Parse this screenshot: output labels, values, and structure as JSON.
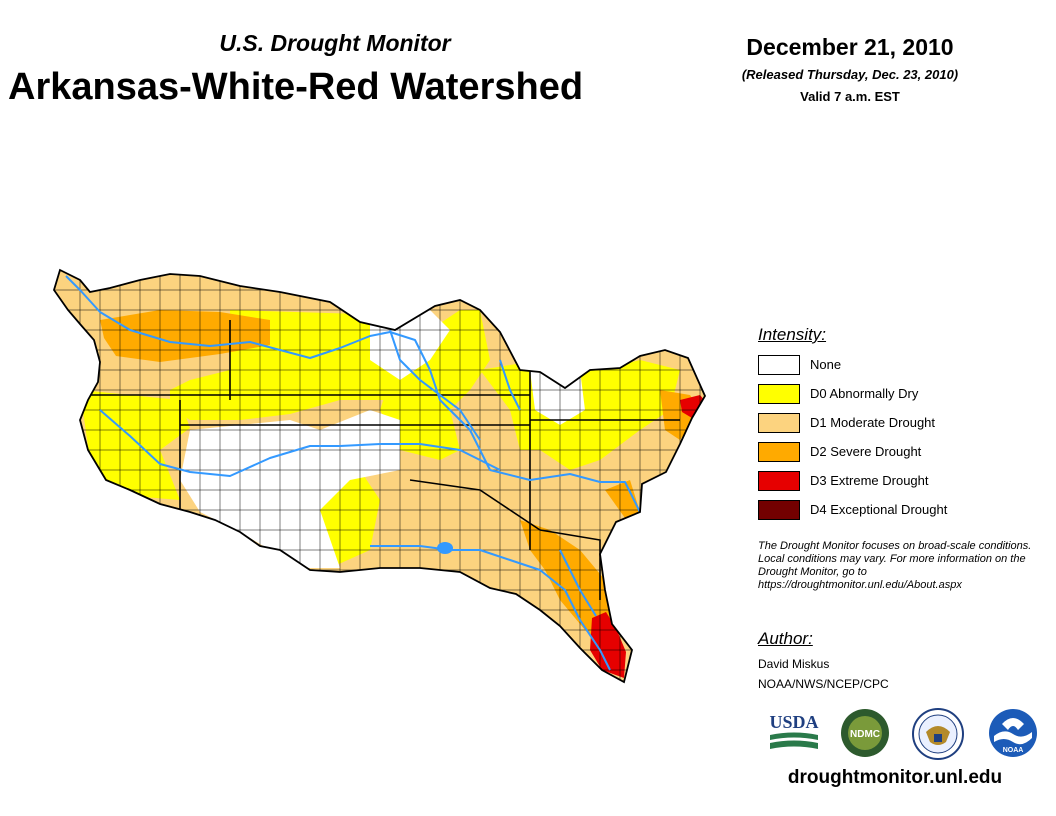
{
  "header": {
    "supertitle": "U.S. Drought Monitor",
    "title": "Arkansas-White-Red Watershed",
    "date": "December 21, 2010",
    "released": "(Released Thursday, Dec. 23, 2010)",
    "valid": "Valid 7 a.m. EST"
  },
  "legend": {
    "title": "Intensity:",
    "items": [
      {
        "label": "None",
        "color": "#ffffff"
      },
      {
        "label": "D0 Abnormally Dry",
        "color": "#ffff00"
      },
      {
        "label": "D1 Moderate Drought",
        "color": "#fcd37f"
      },
      {
        "label": "D2 Severe Drought",
        "color": "#ffaa00"
      },
      {
        "label": "D3 Extreme Drought",
        "color": "#e60000"
      },
      {
        "label": "D4 Exceptional Drought",
        "color": "#730000"
      }
    ]
  },
  "note": "The Drought Monitor focuses on broad-scale conditions. Local conditions may vary. For more information on the Drought Monitor, go to https://droughtmonitor.unl.edu/About.aspx",
  "author": {
    "title": "Author:",
    "name": "David Miskus",
    "org": "NOAA/NWS/NCEP/CPC"
  },
  "logos": {
    "usda": "USDA",
    "ndmc": "NDMC",
    "noaa": "NOAA"
  },
  "footer": {
    "url": "droughtmonitor.unl.edu"
  },
  "colors": {
    "river": "#3399ff",
    "border": "#000000"
  }
}
